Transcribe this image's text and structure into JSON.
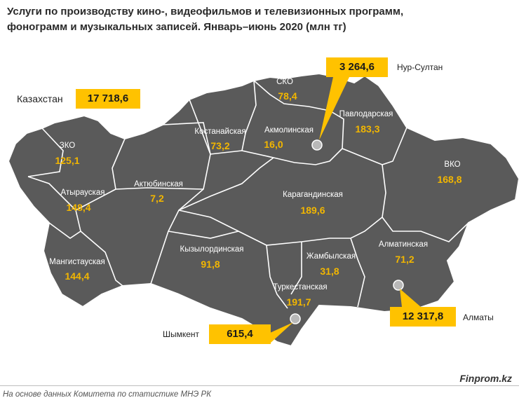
{
  "title": {
    "line1": "Услуги по производству кино-, видеофильмов и телевизионных программ,",
    "line2": "фонограмм и музыкальных записей. Январь–июнь 2020  (млн тг)"
  },
  "kazakhstan": {
    "name": "Казахстан",
    "value": "17 718,6"
  },
  "regions": [
    {
      "name": "ЗКО",
      "value": "125,1"
    },
    {
      "name": "Атырауская",
      "value": "148,4"
    },
    {
      "name": "Мангистауская",
      "value": "144,4"
    },
    {
      "name": "Актюбинская",
      "value": "7,2"
    },
    {
      "name": "Костанайская",
      "value": "73,2"
    },
    {
      "name": "СКО",
      "value": "78,4"
    },
    {
      "name": "Акмолинская",
      "value": "16,0"
    },
    {
      "name": "Павлодарская",
      "value": "183,3"
    },
    {
      "name": "ВКО",
      "value": "168,8"
    },
    {
      "name": "Карагандинская",
      "value": "189,6"
    },
    {
      "name": "Кызылординская",
      "value": "91,8"
    },
    {
      "name": "Жамбылская",
      "value": "31,8"
    },
    {
      "name": "Алматинская",
      "value": "71,2"
    },
    {
      "name": "Туркестанская",
      "value": "191,7"
    }
  ],
  "cities": [
    {
      "name": "Нур-Султан",
      "value": "3 264,6"
    },
    {
      "name": "Алматы",
      "value": "12 317,8"
    },
    {
      "name": "Шымкент",
      "value": "615,4"
    }
  ],
  "colors": {
    "map_fill": "#5a5a5a",
    "border": "#ffffff",
    "accent": "#ffc200",
    "value_text": "#f2b600"
  },
  "source": "На основе данных  Комитета по статистике МНЭ РК",
  "brand": "Finprom.kz"
}
